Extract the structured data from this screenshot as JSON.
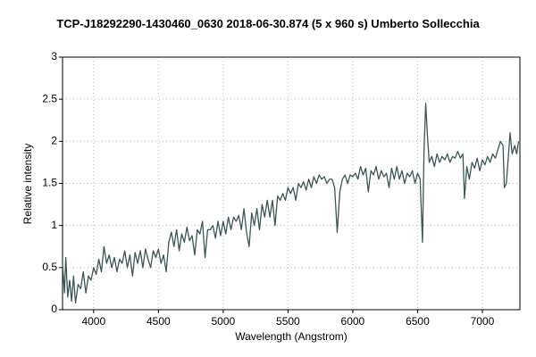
{
  "chart_data": {
    "type": "line",
    "title": "TCP-J18292290-1430460_0630  2018-06-30.874  (5 x 960 s)  Umberto Sollecchia",
    "x_label": "Wavelength (Angstrom)",
    "y_label": "Relative intensity",
    "xlim": [
      3760,
      7290
    ],
    "ylim": [
      0,
      3
    ],
    "xticks": [
      4000,
      4500,
      5000,
      5500,
      6000,
      6500,
      7000
    ],
    "yticks": [
      0,
      0.5,
      1,
      1.5,
      2,
      2.5,
      3
    ],
    "grid": true,
    "color": "#3a5656",
    "x": [
      3760,
      3775,
      3785,
      3800,
      3815,
      3830,
      3845,
      3860,
      3880,
      3900,
      3920,
      3940,
      3960,
      3980,
      4000,
      4020,
      4040,
      4060,
      4080,
      4100,
      4120,
      4140,
      4160,
      4180,
      4200,
      4220,
      4240,
      4260,
      4280,
      4300,
      4320,
      4340,
      4360,
      4380,
      4400,
      4420,
      4440,
      4460,
      4480,
      4500,
      4520,
      4540,
      4560,
      4580,
      4600,
      4620,
      4640,
      4660,
      4680,
      4700,
      4720,
      4740,
      4760,
      4780,
      4800,
      4820,
      4840,
      4860,
      4880,
      4900,
      4920,
      4940,
      4960,
      4980,
      5000,
      5020,
      5040,
      5060,
      5080,
      5100,
      5120,
      5140,
      5160,
      5180,
      5200,
      5220,
      5240,
      5260,
      5280,
      5300,
      5320,
      5340,
      5360,
      5380,
      5400,
      5420,
      5440,
      5460,
      5480,
      5500,
      5520,
      5540,
      5560,
      5580,
      5600,
      5620,
      5640,
      5660,
      5680,
      5700,
      5720,
      5740,
      5760,
      5780,
      5800,
      5820,
      5840,
      5860,
      5880,
      5900,
      5920,
      5940,
      5960,
      5980,
      6000,
      6020,
      6040,
      6060,
      6080,
      6100,
      6120,
      6140,
      6160,
      6180,
      6200,
      6220,
      6240,
      6260,
      6280,
      6300,
      6320,
      6340,
      6360,
      6380,
      6400,
      6420,
      6440,
      6460,
      6480,
      6500,
      6520,
      6538,
      6550,
      6563,
      6575,
      6590,
      6610,
      6630,
      6650,
      6670,
      6690,
      6710,
      6730,
      6750,
      6770,
      6790,
      6810,
      6830,
      6850,
      6862,
      6880,
      6900,
      6920,
      6940,
      6960,
      6980,
      7000,
      7020,
      7040,
      7060,
      7080,
      7100,
      7120,
      7140,
      7160,
      7170,
      7185,
      7200,
      7214,
      7230,
      7250,
      7265,
      7280
    ],
    "values": [
      0.55,
      0.2,
      0.62,
      0.15,
      0.35,
      0.1,
      0.4,
      0.08,
      0.3,
      0.25,
      0.45,
      0.2,
      0.4,
      0.35,
      0.5,
      0.42,
      0.6,
      0.45,
      0.75,
      0.55,
      0.65,
      0.5,
      0.62,
      0.45,
      0.6,
      0.55,
      0.7,
      0.5,
      0.65,
      0.4,
      0.68,
      0.55,
      0.7,
      0.5,
      0.72,
      0.6,
      0.5,
      0.7,
      0.62,
      0.72,
      0.55,
      0.65,
      0.45,
      0.8,
      0.92,
      0.75,
      0.95,
      0.7,
      0.9,
      0.8,
      0.98,
      0.82,
      0.88,
      0.65,
      0.95,
      0.9,
      1.05,
      0.62,
      0.95,
      0.95,
      1.0,
      0.85,
      1.05,
      0.88,
      1.05,
      0.9,
      1.1,
      0.95,
      1.1,
      1.05,
      1.12,
      0.95,
      1.2,
      0.92,
      0.75,
      1.15,
      1.0,
      1.2,
      0.95,
      1.25,
      1.1,
      1.3,
      1.1,
      1.3,
      1.0,
      1.35,
      1.3,
      1.38,
      1.3,
      1.45,
      1.38,
      1.45,
      1.3,
      1.5,
      1.45,
      1.52,
      1.42,
      1.55,
      1.45,
      1.58,
      1.5,
      1.6,
      1.55,
      1.58,
      1.5,
      1.55,
      1.55,
      1.45,
      0.92,
      1.4,
      1.55,
      1.6,
      1.5,
      1.6,
      1.58,
      1.62,
      1.55,
      1.7,
      1.6,
      1.68,
      1.4,
      1.65,
      1.6,
      1.7,
      1.55,
      1.65,
      1.58,
      1.62,
      1.45,
      1.68,
      1.55,
      1.7,
      1.55,
      1.65,
      1.5,
      1.62,
      1.58,
      1.65,
      1.5,
      1.62,
      1.55,
      0.8,
      1.9,
      2.45,
      2.1,
      1.75,
      1.82,
      1.7,
      1.85,
      1.75,
      1.82,
      1.78,
      1.85,
      1.75,
      1.82,
      1.8,
      1.88,
      1.8,
      1.85,
      1.32,
      1.7,
      1.55,
      1.75,
      1.68,
      1.8,
      1.65,
      1.78,
      1.72,
      1.82,
      1.75,
      1.85,
      1.8,
      1.9,
      2.0,
      1.95,
      1.45,
      1.5,
      1.8,
      2.1,
      1.85,
      1.95,
      1.85,
      2.0
    ]
  }
}
